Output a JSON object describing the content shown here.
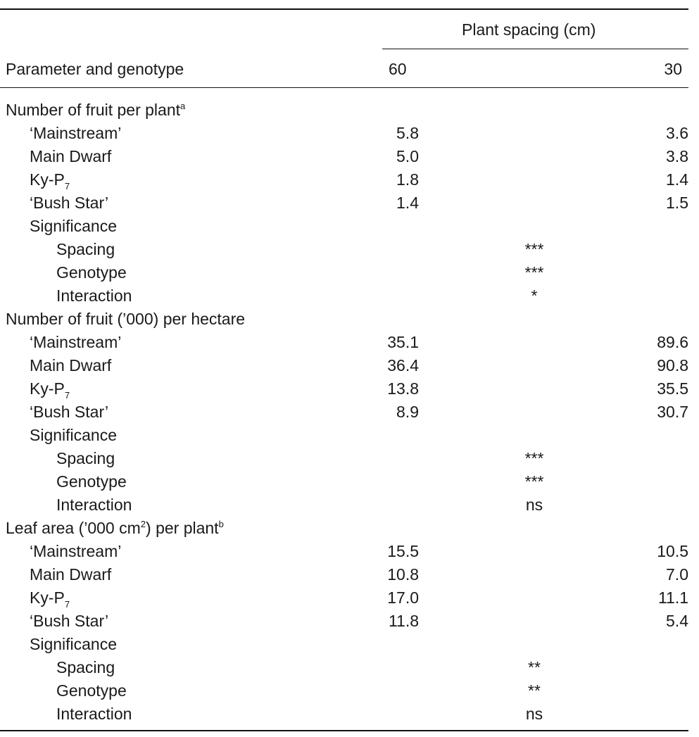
{
  "table": {
    "header": {
      "column_group": "Plant spacing (cm)",
      "parameter": "Parameter and genotype",
      "spacing_60": "60",
      "spacing_30": "30"
    },
    "sections": [
      {
        "title": "Number of fruit per plant",
        "title_sup": "a",
        "rows": [
          {
            "genotype": "‘Mainstream’",
            "v60": "5.8",
            "v30": "3.6"
          },
          {
            "genotype": "Main Dwarf",
            "v60": "5.0",
            "v30": "3.8"
          },
          {
            "genotype": "Ky-P",
            "genotype_sub": "7",
            "v60": "1.8",
            "v30": "1.4"
          },
          {
            "genotype": "‘Bush Star’",
            "v60": "1.4",
            "v30": "1.5"
          }
        ],
        "significance_label": "Significance",
        "significance": [
          {
            "label": "Spacing",
            "value": "***"
          },
          {
            "label": "Genotype",
            "value": "***"
          },
          {
            "label": "Interaction",
            "value": "*"
          }
        ]
      },
      {
        "title": "Number of fruit (’000) per hectare",
        "rows": [
          {
            "genotype": "‘Mainstream’",
            "v60": "35.1",
            "v30": "89.6"
          },
          {
            "genotype": "Main Dwarf",
            "v60": "36.4",
            "v30": "90.8"
          },
          {
            "genotype": "Ky-P",
            "genotype_sub": "7",
            "v60": "13.8",
            "v30": "35.5"
          },
          {
            "genotype": "‘Bush Star’",
            "v60": "8.9",
            "v30": "30.7"
          }
        ],
        "significance_label": "Significance",
        "significance": [
          {
            "label": "Spacing",
            "value": "***"
          },
          {
            "label": "Genotype",
            "value": "***"
          },
          {
            "label": "Interaction",
            "value": "ns"
          }
        ]
      },
      {
        "title_pre": "Leaf area (’000 cm",
        "title_pre_sup": "2",
        "title_post": ") per plant",
        "title_sup": "b",
        "rows": [
          {
            "genotype": "‘Mainstream’",
            "v60": "15.5",
            "v30": "10.5"
          },
          {
            "genotype": "Main Dwarf",
            "v60": "10.8",
            "v30": "7.0"
          },
          {
            "genotype": "Ky-P",
            "genotype_sub": "7",
            "v60": "17.0",
            "v30": "11.1"
          },
          {
            "genotype": "‘Bush Star’",
            "v60": "11.8",
            "v30": "5.4"
          }
        ],
        "significance_label": "Significance",
        "significance": [
          {
            "label": "Spacing",
            "value": "**"
          },
          {
            "label": "Genotype",
            "value": "**"
          },
          {
            "label": "Interaction",
            "value": "ns"
          }
        ]
      }
    ]
  }
}
